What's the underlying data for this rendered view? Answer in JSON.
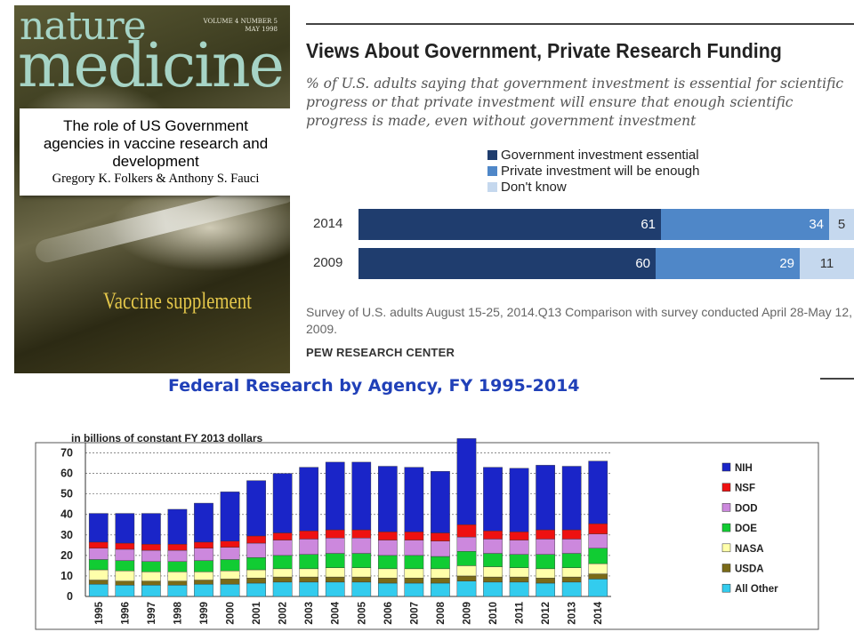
{
  "cover": {
    "masthead_line1": "nature",
    "masthead_line2": "medicine",
    "volume_line1": "VOLUME 4 NUMBER 5",
    "volume_line2": "MAY 1998",
    "box_title_line1": "The role of US Government",
    "box_title_line2": "agencies in vaccine research and",
    "box_title_line3": "development",
    "box_authors": "Gregory K. Folkers & Anthony S. Fauci",
    "supplement": "Vaccine supplement"
  },
  "chart_data": [
    {
      "type": "bar",
      "orientation": "horizontal-stacked-percent",
      "title": "Views About Government, Private Research Funding",
      "subtitle": "% of U.S. adults saying that government investment is essential for scientific progress or that private investment will ensure that enough scientific progress is made, even without government investment",
      "categories": [
        "2014",
        "2009"
      ],
      "series": [
        {
          "name": "Government investment essential",
          "values": [
            61,
            60
          ],
          "color": "#1f3d6e"
        },
        {
          "name": "Private investment will be enough",
          "values": [
            34,
            29
          ],
          "color": "#4f87c8"
        },
        {
          "name": "Don't know",
          "values": [
            5,
            11
          ],
          "color": "#c5d8ee"
        }
      ],
      "legend_position": "top",
      "note": "Survey of U.S. adults August 15-25, 2014.Q13 Comparison with survey conducted April 28-May 12, 2009.",
      "source": "PEW RESEARCH CENTER"
    },
    {
      "type": "bar",
      "orientation": "vertical-stacked",
      "title": "Federal Research by Agency, FY 1995-2014",
      "ylabel": "in billions of constant FY 2013 dollars",
      "ylim": [
        0,
        75
      ],
      "yticks": [
        0,
        10,
        20,
        30,
        40,
        50,
        60,
        70
      ],
      "grid": true,
      "legend_position": "right",
      "categories": [
        "1995",
        "1996",
        "1997",
        "1998",
        "1999",
        "2000",
        "2001",
        "2002",
        "2003",
        "2004",
        "2005",
        "2006",
        "2007",
        "2008",
        "2009",
        "2010",
        "2011",
        "2012",
        "2013",
        "2014"
      ],
      "series": [
        {
          "name": "All Other",
          "color": "#33ccee",
          "values": [
            6,
            5.5,
            5.5,
            5.5,
            6,
            6,
            6.5,
            7,
            7,
            7,
            7,
            6.5,
            6.5,
            6.5,
            7.5,
            7,
            7,
            6.5,
            7,
            8.5
          ]
        },
        {
          "name": "USDA",
          "color": "#7a6a18",
          "values": [
            2,
            2,
            2,
            2,
            2,
            2.5,
            2.5,
            2.5,
            2.5,
            2.5,
            2.5,
            2.5,
            2.5,
            2.5,
            2.5,
            2.5,
            2.5,
            2.5,
            2.5,
            2.5
          ]
        },
        {
          "name": "NASA",
          "color": "#ffffaa",
          "values": [
            5,
            5,
            4.5,
            4.5,
            4,
            4,
            4,
            4,
            4,
            4.5,
            4.5,
            4.5,
            4.5,
            4.5,
            5,
            5,
            4.5,
            4.5,
            4.5,
            5
          ]
        },
        {
          "name": "DOE",
          "color": "#11cc33",
          "values": [
            5,
            5,
            5,
            5,
            5.5,
            5.5,
            6,
            6.5,
            7,
            7,
            7,
            6.5,
            6.5,
            6,
            7,
            6.5,
            6.5,
            7,
            7,
            7.5
          ]
        },
        {
          "name": "DOD",
          "color": "#cc88dd",
          "values": [
            5.5,
            5.5,
            5.5,
            5.5,
            6,
            6,
            7,
            7.5,
            7.5,
            7.5,
            7.5,
            7.5,
            7.5,
            7.5,
            7,
            7,
            7,
            7.5,
            7,
            7
          ]
        },
        {
          "name": "NSF",
          "color": "#ee1111",
          "values": [
            3,
            3,
            3,
            3,
            3,
            3,
            3.5,
            3.5,
            4,
            4,
            4,
            4,
            4,
            4,
            6,
            4,
            4,
            4.5,
            4.5,
            5
          ]
        },
        {
          "name": "NIH",
          "color": "#1a25c8",
          "values": [
            14,
            14.5,
            15,
            17,
            19,
            24,
            27,
            29,
            31,
            33,
            33,
            32,
            31.5,
            30,
            42,
            31,
            31,
            31.5,
            31,
            30.5
          ]
        }
      ]
    }
  ]
}
